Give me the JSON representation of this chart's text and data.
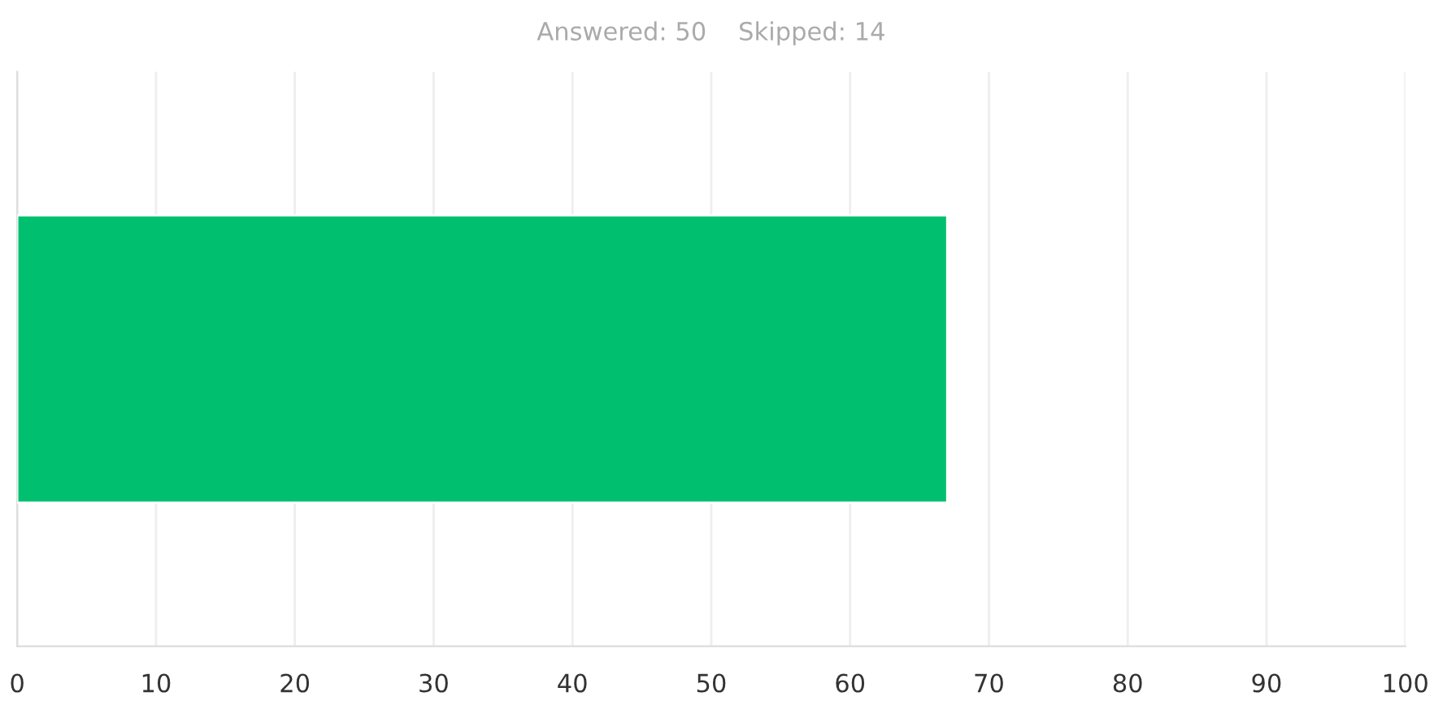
{
  "chart_data": {
    "type": "bar",
    "orientation": "horizontal",
    "title": "Answered: 50    Skipped: 14",
    "categories": [
      null
    ],
    "values": [
      67
    ],
    "color": "#00bf6f",
    "xlim": [
      0,
      100
    ],
    "xticks": [
      0,
      10,
      20,
      30,
      40,
      50,
      60,
      70,
      80,
      90,
      100
    ],
    "grid": "x",
    "tick_labels": "x"
  }
}
